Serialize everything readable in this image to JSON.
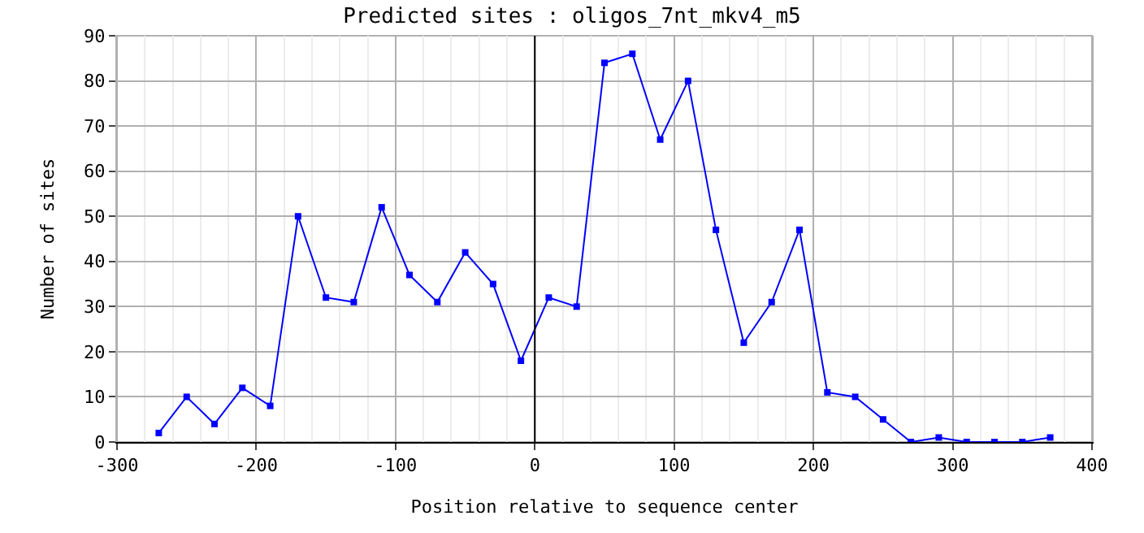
{
  "chart_data": {
    "type": "line",
    "title": "Predicted sites : oligos_7nt_mkv4_m5",
    "xlabel": "Position relative to sequence center",
    "ylabel": "Number of sites",
    "x": [
      -270,
      -250,
      -230,
      -210,
      -190,
      -170,
      -150,
      -130,
      -110,
      -90,
      -70,
      -50,
      -30,
      -10,
      10,
      30,
      50,
      70,
      90,
      110,
      130,
      150,
      170,
      190,
      210,
      230,
      250,
      270,
      290,
      310,
      330,
      350,
      370
    ],
    "series": [
      {
        "color": "#0000ff",
        "values": [
          2,
          10,
          4,
          12,
          8,
          50,
          32,
          31,
          52,
          37,
          31,
          42,
          35,
          18,
          32,
          30,
          84,
          86,
          67,
          80,
          47,
          22,
          31,
          47,
          11,
          10,
          5,
          0,
          1,
          0,
          0,
          0,
          1
        ]
      }
    ],
    "xlim": [
      -300,
      400
    ],
    "xticks": [
      -300,
      -200,
      -100,
      0,
      100,
      200,
      300,
      400
    ],
    "ylim": [
      0,
      90
    ],
    "yticks": [
      0,
      10,
      20,
      30,
      40,
      50,
      60,
      70,
      80,
      90
    ],
    "ref_lines": [
      {
        "axis": "x",
        "value": 0,
        "color": "#000000"
      }
    ],
    "grid": true,
    "marker": "square",
    "line_style": "solid"
  }
}
